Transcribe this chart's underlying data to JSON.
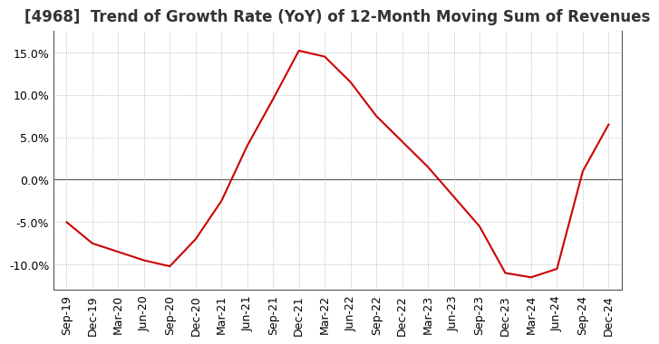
{
  "title": "[4968]  Trend of Growth Rate (YoY) of 12-Month Moving Sum of Revenues",
  "x_labels": [
    "Sep-19",
    "Dec-19",
    "Mar-20",
    "Jun-20",
    "Sep-20",
    "Dec-20",
    "Mar-21",
    "Jun-21",
    "Sep-21",
    "Dec-21",
    "Mar-22",
    "Jun-22",
    "Sep-22",
    "Dec-22",
    "Mar-23",
    "Jun-23",
    "Sep-23",
    "Dec-23",
    "Mar-24",
    "Jun-24",
    "Sep-24",
    "Dec-24"
  ],
  "y_values": [
    -5.0,
    -7.5,
    -8.5,
    -9.5,
    -10.2,
    -7.0,
    -2.5,
    4.0,
    9.5,
    15.2,
    14.5,
    11.5,
    7.5,
    4.5,
    1.5,
    -2.0,
    -5.5,
    -11.0,
    -11.5,
    -10.5,
    1.0,
    6.5
  ],
  "line_color": "#cc0000",
  "ylim": [
    -13.0,
    17.5
  ],
  "yticks": [
    -10.0,
    -5.0,
    0.0,
    5.0,
    10.0,
    15.0
  ],
  "grid_color": "#aaaaaa",
  "zero_line_color": "#555555",
  "background_color": "#ffffff",
  "title_fontsize": 12,
  "tick_fontsize": 9,
  "border_color": "#555555"
}
